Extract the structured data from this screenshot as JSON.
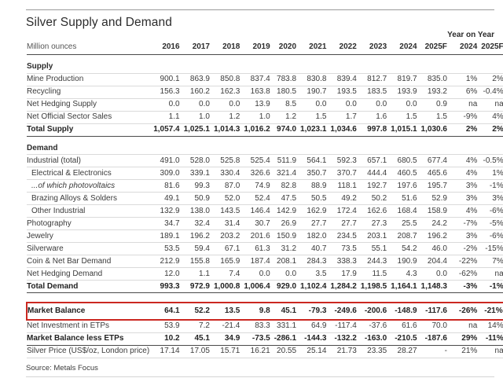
{
  "title": "Silver Supply and Demand",
  "unit_label": "Million ounces",
  "year_on_year_label": "Year on Year",
  "source": "Source: Metals Focus",
  "colors": {
    "highlight_border": "#cb2821",
    "rule_dark": "#4a4a4a",
    "rule_light": "#dadada",
    "text": "#3b3b3b"
  },
  "table": {
    "columns": [
      "2016",
      "2017",
      "2018",
      "2019",
      "2020",
      "2021",
      "2022",
      "2023",
      "2024",
      "2025F",
      "2024",
      "2025F"
    ],
    "rows": [
      {
        "label": "Supply",
        "style": "section",
        "values": []
      },
      {
        "label": "Mine Production",
        "style": "",
        "values": [
          "900.1",
          "863.9",
          "850.8",
          "837.4",
          "783.8",
          "830.8",
          "839.4",
          "812.7",
          "819.7",
          "835.0",
          "1%",
          "2%"
        ]
      },
      {
        "label": "Recycling",
        "style": "",
        "values": [
          "156.3",
          "160.2",
          "162.3",
          "163.8",
          "180.5",
          "190.7",
          "193.5",
          "183.5",
          "193.9",
          "193.2",
          "6%",
          "-0.4%"
        ]
      },
      {
        "label": "Net Hedging Supply",
        "style": "",
        "values": [
          "0.0",
          "0.0",
          "0.0",
          "13.9",
          "8.5",
          "0.0",
          "0.0",
          "0.0",
          "0.0",
          "0.9",
          "na",
          "na"
        ]
      },
      {
        "label": "Net Official Sector Sales",
        "style": "",
        "values": [
          "1.1",
          "1.0",
          "1.2",
          "1.0",
          "1.2",
          "1.5",
          "1.7",
          "1.6",
          "1.5",
          "1.5",
          "-9%",
          "4%"
        ]
      },
      {
        "label": "Total Supply",
        "style": "total",
        "values": [
          "1,057.4",
          "1,025.1",
          "1,014.3",
          "1,016.2",
          "974.0",
          "1,023.1",
          "1,034.6",
          "997.8",
          "1,015.1",
          "1,030.6",
          "2%",
          "2%"
        ]
      },
      {
        "label": "Demand",
        "style": "section",
        "values": []
      },
      {
        "label": "Industrial (total)",
        "style": "",
        "values": [
          "491.0",
          "528.0",
          "525.8",
          "525.4",
          "511.9",
          "564.1",
          "592.3",
          "657.1",
          "680.5",
          "677.4",
          "4%",
          "-0.5%"
        ]
      },
      {
        "label": "Electrical & Electronics",
        "style": "indent",
        "values": [
          "309.0",
          "339.1",
          "330.4",
          "326.6",
          "321.4",
          "350.7",
          "370.7",
          "444.4",
          "460.5",
          "465.6",
          "4%",
          "1%"
        ]
      },
      {
        "label": "...of which photovoltaics",
        "style": "indent italic",
        "values": [
          "81.6",
          "99.3",
          "87.0",
          "74.9",
          "82.8",
          "88.9",
          "118.1",
          "192.7",
          "197.6",
          "195.7",
          "3%",
          "-1%"
        ]
      },
      {
        "label": "Brazing Alloys & Solders",
        "style": "indent",
        "values": [
          "49.1",
          "50.9",
          "52.0",
          "52.4",
          "47.5",
          "50.5",
          "49.2",
          "50.2",
          "51.6",
          "52.9",
          "3%",
          "3%"
        ]
      },
      {
        "label": "Other Industrial",
        "style": "indent",
        "values": [
          "132.9",
          "138.0",
          "143.5",
          "146.4",
          "142.9",
          "162.9",
          "172.4",
          "162.6",
          "168.4",
          "158.9",
          "4%",
          "-6%"
        ]
      },
      {
        "label": "Photography",
        "style": "",
        "values": [
          "34.7",
          "32.4",
          "31.4",
          "30.7",
          "26.9",
          "27.7",
          "27.7",
          "27.3",
          "25.5",
          "24.2",
          "-7%",
          "-5%"
        ]
      },
      {
        "label": "Jewelry",
        "style": "",
        "values": [
          "189.1",
          "196.2",
          "203.2",
          "201.6",
          "150.9",
          "182.0",
          "234.5",
          "203.1",
          "208.7",
          "196.2",
          "3%",
          "-6%"
        ]
      },
      {
        "label": "Silverware",
        "style": "",
        "values": [
          "53.5",
          "59.4",
          "67.1",
          "61.3",
          "31.2",
          "40.7",
          "73.5",
          "55.1",
          "54.2",
          "46.0",
          "-2%",
          "-15%"
        ]
      },
      {
        "label": "Coin & Net Bar Demand",
        "style": "",
        "values": [
          "212.9",
          "155.8",
          "165.9",
          "187.4",
          "208.1",
          "284.3",
          "338.3",
          "244.3",
          "190.9",
          "204.4",
          "-22%",
          "7%"
        ]
      },
      {
        "label": "Net Hedging Demand",
        "style": "",
        "values": [
          "12.0",
          "1.1",
          "7.4",
          "0.0",
          "0.0",
          "3.5",
          "17.9",
          "11.5",
          "4.3",
          "0.0",
          "-62%",
          "na"
        ]
      },
      {
        "label": "Total Demand",
        "style": "total",
        "values": [
          "993.3",
          "972.9",
          "1,000.8",
          "1,006.4",
          "929.0",
          "1,102.4",
          "1,284.2",
          "1,198.5",
          "1,164.1",
          "1,148.3",
          "-3%",
          "-1%"
        ]
      },
      {
        "label": "",
        "style": "spacer",
        "values": []
      },
      {
        "label": "Market Balance",
        "style": "highlight",
        "values": [
          "64.1",
          "52.2",
          "13.5",
          "9.8",
          "45.1",
          "-79.3",
          "-249.6",
          "-200.6",
          "-148.9",
          "-117.6",
          "-26%",
          "-21%"
        ]
      },
      {
        "label": "Net Investment in ETPs",
        "style": "",
        "values": [
          "53.9",
          "7.2",
          "-21.4",
          "83.3",
          "331.1",
          "64.9",
          "-117.4",
          "-37.6",
          "61.6",
          "70.0",
          "na",
          "14%"
        ]
      },
      {
        "label": "Market Balance less ETPs",
        "style": "total",
        "values": [
          "10.2",
          "45.1",
          "34.9",
          "-73.5",
          "-286.1",
          "-144.3",
          "-132.2",
          "-163.0",
          "-210.5",
          "-187.6",
          "29%",
          "-11%"
        ]
      },
      {
        "label": "Silver Price (US$/oz, London price)",
        "style": "",
        "values": [
          "17.14",
          "17.05",
          "15.71",
          "16.21",
          "20.55",
          "25.14",
          "21.73",
          "23.35",
          "28.27",
          "-",
          "21%",
          "na"
        ]
      }
    ]
  }
}
